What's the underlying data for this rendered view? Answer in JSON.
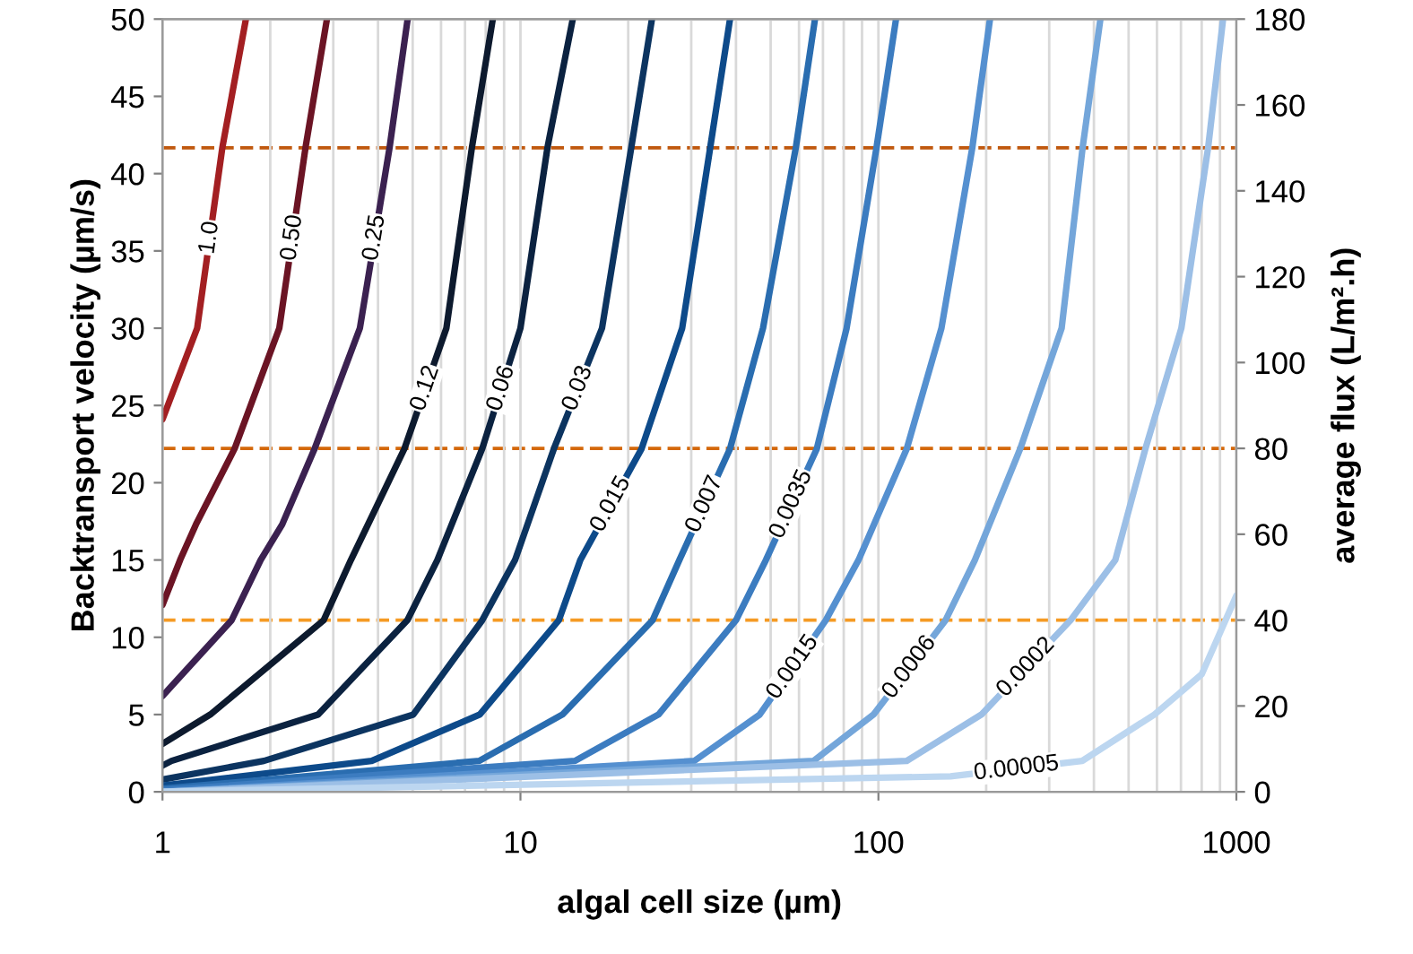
{
  "chart_data": {
    "type": "line",
    "xlabel": "algal cell size (µm)",
    "ylabel": "Backtransport velocity (µm/s)",
    "y2label": "average flux (L/m².h)",
    "log": "x",
    "xlim": [
      1,
      1000
    ],
    "xticks": [
      1,
      10,
      100,
      1000
    ],
    "ylim": [
      0,
      50
    ],
    "yticks": [
      0,
      5,
      10,
      15,
      20,
      25,
      30,
      35,
      40,
      45,
      50
    ],
    "y2lim": [
      0,
      180
    ],
    "y2ticks": [
      0,
      20,
      40,
      60,
      80,
      100,
      120,
      140,
      160,
      180
    ],
    "grid": "x",
    "legend": false,
    "marker": "none",
    "line_style": "solid",
    "series": [
      {
        "name": "1.0",
        "color": "#a31f22",
        "x": [
          1,
          1.25,
          1.47,
          1.71
        ],
        "values": [
          24.1,
          30,
          41.7,
          50
        ]
      },
      {
        "name": "0.50",
        "color": "#6b1424",
        "x": [
          1,
          1.12,
          1.24,
          1.59,
          2.12,
          2.51,
          2.88
        ],
        "values": [
          12.1,
          15,
          17.3,
          22.2,
          30,
          41.7,
          50
        ]
      },
      {
        "name": "0.25",
        "color": "#3b2150",
        "x": [
          1,
          1.56,
          1.88,
          2.16,
          2.66,
          3.56,
          4.31,
          4.84
        ],
        "values": [
          6.2,
          11.1,
          15,
          17.3,
          22.2,
          30,
          41.7,
          50
        ]
      },
      {
        "name": "0.12",
        "color": "#0d1a2e",
        "x": [
          1,
          1.36,
          2.82,
          3.36,
          4.74,
          6.21,
          7.32,
          8.37
        ],
        "values": [
          3.1,
          5,
          11.1,
          15,
          22.2,
          30,
          41.7,
          50
        ]
      },
      {
        "name": "0.06",
        "color": "#0b2240",
        "x": [
          1,
          1.06,
          2.72,
          4.83,
          5.86,
          7.82,
          10.0,
          11.9,
          14.0
        ],
        "values": [
          1.7,
          2,
          5,
          11.1,
          15,
          22.2,
          30,
          41.7,
          50
        ]
      },
      {
        "name": "0.03",
        "color": "#0c3460",
        "x": [
          1,
          1.92,
          5.02,
          7.82,
          9.66,
          12.4,
          16.9,
          20.4,
          23.3
        ],
        "values": [
          0.8,
          2,
          5,
          11.1,
          15,
          22.2,
          30,
          41.7,
          50
        ]
      },
      {
        "name": "0.015",
        "color": "#0d4a8a",
        "x": [
          1,
          3.84,
          7.7,
          12.8,
          14.7,
          21.8,
          28.3,
          33.9,
          38.5
        ],
        "values": [
          0.4,
          2,
          5,
          11.1,
          15,
          22.2,
          30,
          41.7,
          50
        ]
      },
      {
        "name": "0.007",
        "color": "#2a6db0",
        "x": [
          1,
          7.67,
          13.1,
          23.4,
          27.8,
          38.5,
          47.6,
          58.8,
          66.5
        ],
        "values": [
          0.2,
          2,
          5,
          11.1,
          15,
          22.2,
          30,
          41.7,
          50
        ]
      },
      {
        "name": "0.0035",
        "color": "#3c7cc0",
        "x": [
          1,
          14.2,
          24.3,
          40.0,
          48.5,
          67.3,
          81.5,
          98.8,
          112
        ],
        "values": [
          0.1,
          2,
          5,
          11.1,
          15,
          22.2,
          30,
          41.7,
          50
        ]
      },
      {
        "name": "0.0015",
        "color": "#5590d0",
        "x": [
          1,
          30.6,
          46.6,
          71.3,
          88,
          120,
          150,
          183,
          205
        ],
        "values": [
          0,
          2,
          5,
          11.1,
          15,
          22.2,
          30,
          41.7,
          50
        ]
      },
      {
        "name": "0.0006",
        "color": "#74a6da",
        "x": [
          1,
          65.9,
          96.9,
          154,
          186,
          249,
          325,
          372,
          417
        ],
        "values": [
          0,
          2,
          5,
          11.1,
          15,
          22.2,
          30,
          41.7,
          50
        ]
      },
      {
        "name": "0.0002",
        "color": "#9cbfe6",
        "x": [
          1,
          120,
          194,
          344,
          459,
          557,
          702,
          834,
          918
        ],
        "values": [
          0,
          2,
          5,
          11.1,
          15,
          22.2,
          30,
          41.7,
          50
        ]
      },
      {
        "name": "0.00005",
        "color": "#bcd6f0",
        "x": [
          1,
          159,
          371,
          590,
          800,
          1000
        ],
        "values": [
          0,
          1,
          2,
          5,
          7.6,
          12.7
        ]
      }
    ],
    "ref_lines": [
      {
        "axis": "y2",
        "value": 150,
        "color": "#c0580e",
        "line_style": "dashed"
      },
      {
        "axis": "y2",
        "value": 80,
        "color": "#d4680a",
        "line_style": "dashed"
      },
      {
        "axis": "y2",
        "value": 40,
        "color": "#f59a23",
        "line_style": "dashed"
      }
    ]
  }
}
